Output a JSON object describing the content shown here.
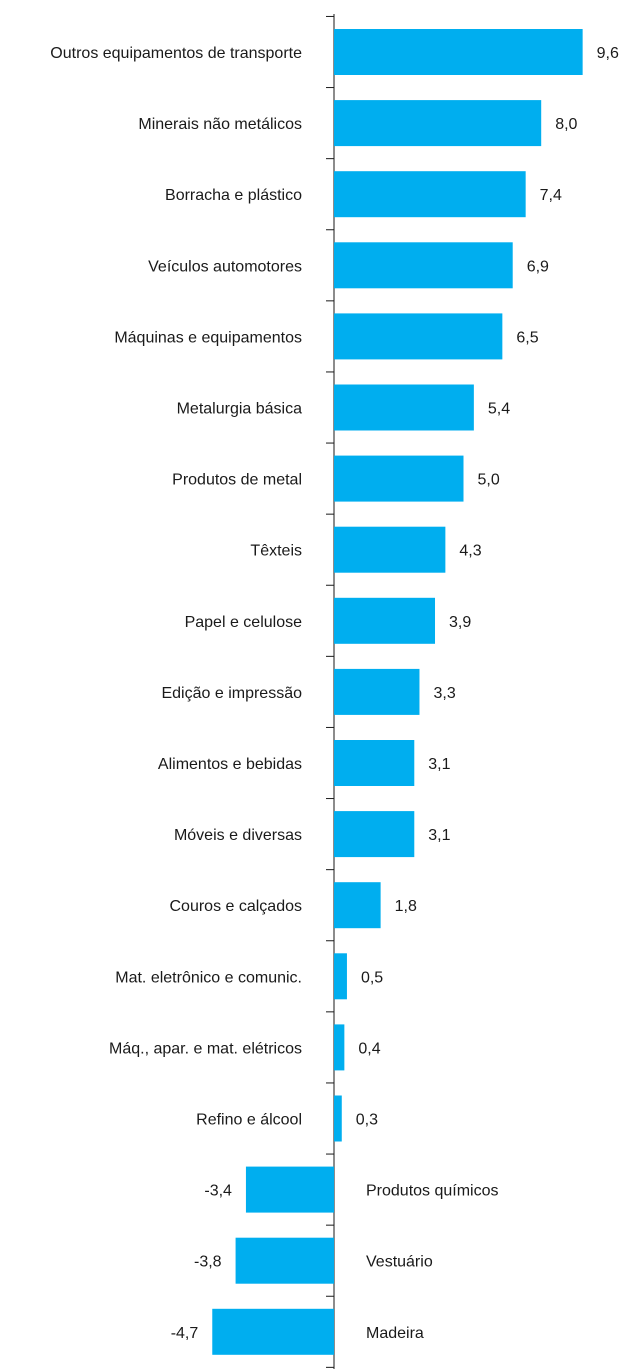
{
  "chart_data": {
    "type": "bar",
    "orientation": "horizontal",
    "categories": [
      "Outros equipamentos de transporte",
      "Minerais não metálicos",
      "Borracha e plástico",
      "Veículos automotores",
      "Máquinas e equipamentos",
      "Metalurgia básica",
      "Produtos de metal",
      "Têxteis",
      "Papel e celulose",
      "Edição e impressão",
      "Alimentos e bebidas",
      "Móveis e diversas",
      "Couros e calçados",
      "Mat. eletrônico e comunic.",
      "Máq., apar. e mat. elétricos",
      "Refino e álcool",
      "Produtos químicos",
      "Vestuário",
      "Madeira"
    ],
    "values": [
      9.6,
      8.0,
      7.4,
      6.9,
      6.5,
      5.4,
      5.0,
      4.3,
      3.9,
      3.3,
      3.1,
      3.1,
      1.8,
      0.5,
      0.4,
      0.3,
      -3.4,
      -3.8,
      -4.7
    ],
    "value_labels": [
      "9,6",
      "8,0",
      "7,4",
      "6,9",
      "6,5",
      "5,4",
      "5,0",
      "4,3",
      "3,9",
      "3,3",
      "3,1",
      "3,1",
      "1,8",
      "0,5",
      "0,4",
      "0,3",
      "-3,4",
      "-3,8",
      "-4,7"
    ],
    "bar_color": "#00AEEF",
    "grid": false,
    "legend": "none"
  }
}
